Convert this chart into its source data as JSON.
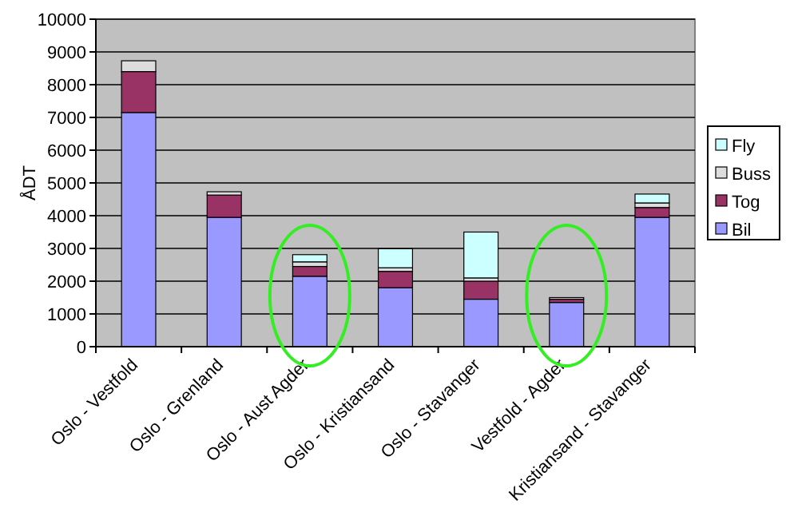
{
  "chart_data": {
    "type": "bar",
    "stacked": true,
    "ylabel": "ÅDT",
    "categories": [
      "Oslo - Vestfold",
      "Oslo - Grenland",
      "Oslo - Aust Agder",
      "Oslo - Kristiansand",
      "Oslo - Stavanger",
      "Vestfold - Agder",
      "Kristiansand - Stavanger"
    ],
    "series": [
      {
        "name": "Bil",
        "color": "#9999ff",
        "values": [
          7150,
          3950,
          2150,
          1800,
          1450,
          1350,
          3950
        ]
      },
      {
        "name": "Tog",
        "color": "#993366",
        "values": [
          1250,
          680,
          300,
          500,
          550,
          100,
          300
        ]
      },
      {
        "name": "Buss",
        "color": "#dddddd",
        "values": [
          330,
          100,
          140,
          110,
          100,
          50,
          140
        ]
      },
      {
        "name": "Fly",
        "color": "#ccffff",
        "values": [
          0,
          0,
          220,
          580,
          1400,
          0,
          270
        ]
      }
    ],
    "ylim": [
      0,
      10000
    ],
    "yticks": [
      0,
      1000,
      2000,
      3000,
      4000,
      5000,
      6000,
      7000,
      8000,
      9000,
      10000
    ],
    "grid": "y",
    "legend": "right"
  }
}
